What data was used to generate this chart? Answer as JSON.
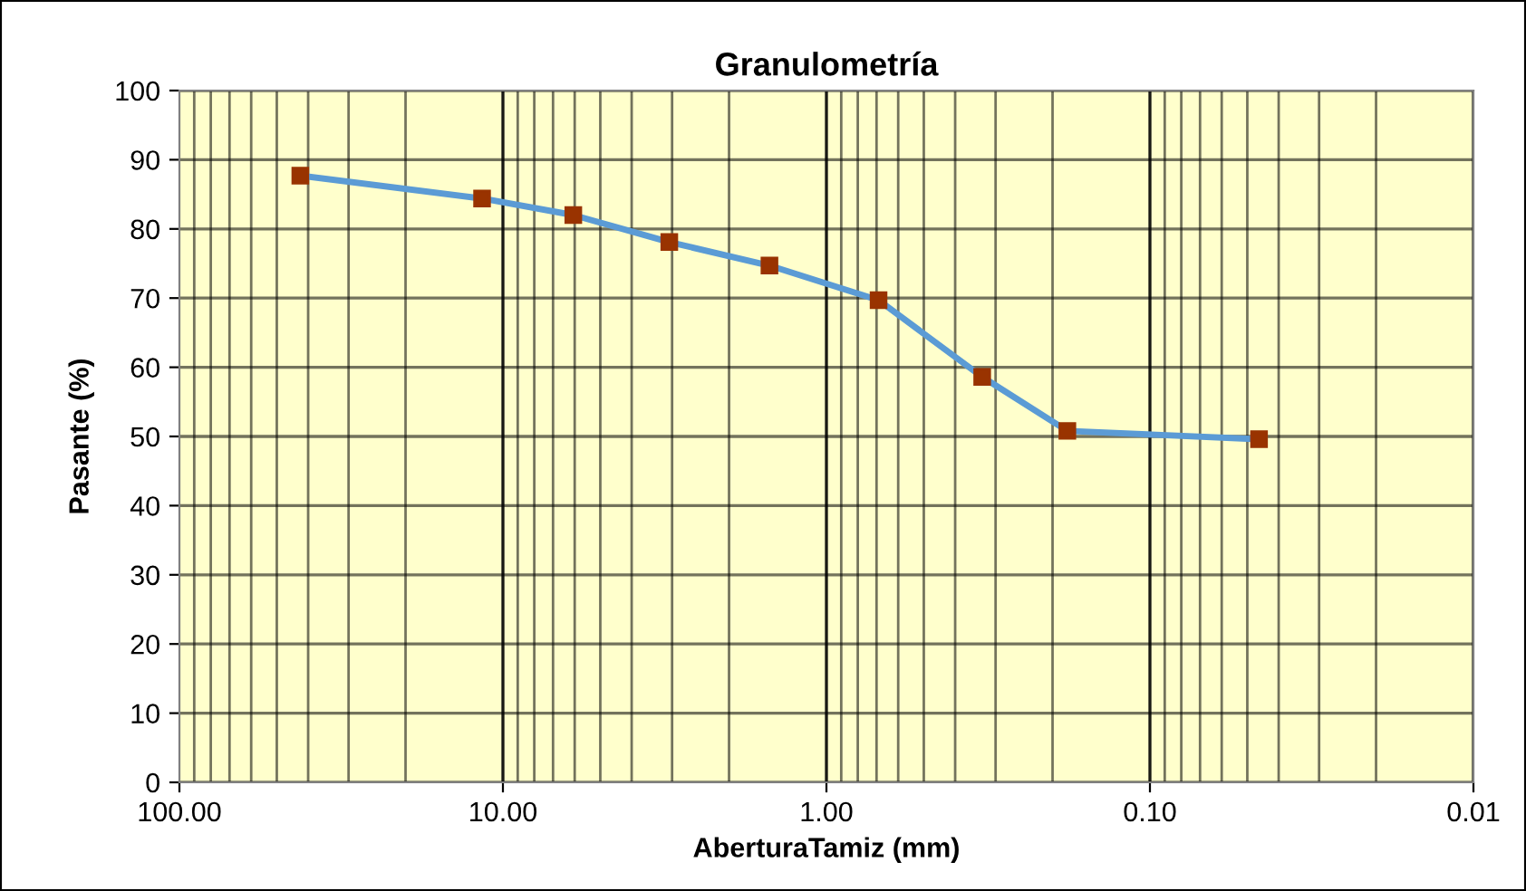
{
  "chart_data": {
    "type": "line",
    "title": "Granulometría",
    "xlabel": "AberturaTamiz (mm)",
    "ylabel": "Pasante (%)",
    "log": "x",
    "x": [
      42.3,
      11.6,
      6.06,
      3.06,
      1.5,
      0.69,
      0.33,
      0.18,
      0.046
    ],
    "series": [
      {
        "color": "#5b9bd5",
        "values": [
          87.7,
          84.4,
          82.0,
          78.1,
          74.7,
          69.7,
          58.6,
          50.8,
          49.6
        ]
      }
    ],
    "xlim": [
      100,
      0.01
    ],
    "xticks": [
      {
        "value": 100,
        "label": "100.00"
      },
      {
        "value": 10,
        "label": "10.00"
      },
      {
        "value": 1,
        "label": "1.00"
      },
      {
        "value": 0.1,
        "label": "0.10"
      },
      {
        "value": 0.01,
        "label": "0.01"
      }
    ],
    "ylim": [
      0,
      100
    ],
    "yticks": [
      0,
      10,
      20,
      30,
      40,
      50,
      60,
      70,
      80,
      90,
      100
    ],
    "grid": true,
    "marker": "square",
    "line_style": "solid",
    "legend": false
  }
}
